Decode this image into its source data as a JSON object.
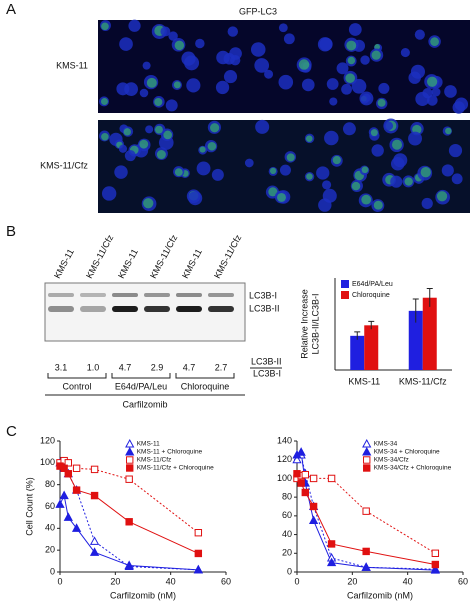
{
  "panel_a": {
    "label": "A",
    "title": "GFP-LC3",
    "rows": [
      "KMS-11",
      "KMS-11/Cfz"
    ]
  },
  "panel_b": {
    "label": "B",
    "lanes": [
      "KMS-11",
      "KMS-11/Cfz",
      "KMS-11",
      "KMS-11/Cfz",
      "KMS-11",
      "KMS-11/Cfz"
    ],
    "bands": [
      "LC3B-I",
      "LC3B-II"
    ],
    "ratios": [
      "3.1",
      "1.0",
      "4.7",
      "2.9",
      "4.7",
      "2.7"
    ],
    "ratio_label": [
      "LC3B-II",
      "LC3B-I"
    ],
    "groups": [
      "Control",
      "E64d/PA/Leu",
      "Chloroquine"
    ],
    "treatment": "Carfilzomib"
  },
  "panel_c": {
    "label": "C"
  },
  "chart_data": [
    {
      "type": "bar",
      "y_label": [
        "Relative Increase",
        "LC3B-II/LC3B-I"
      ],
      "categories": [
        "KMS-11",
        "KMS-11/Cfz"
      ],
      "series": [
        {
          "name": "E64d/PA/Leu",
          "color": "#1f1fe0",
          "values": [
            1.3,
            2.25
          ],
          "errors": [
            0.15,
            0.45
          ]
        },
        {
          "name": "Chloroquine",
          "color": "#e01010",
          "values": [
            1.7,
            2.75
          ],
          "errors": [
            0.15,
            0.35
          ]
        }
      ],
      "ylim": [
        0,
        3.5
      ],
      "legend": "upper left"
    },
    {
      "type": "line",
      "x_label": "Carfilzomib (nM)",
      "y_label": "Cell Count (%)",
      "x": [
        0,
        1.5,
        3,
        6,
        12.5,
        25,
        50
      ],
      "xlim": [
        0,
        60
      ],
      "xticks": [
        0,
        20,
        40,
        60
      ],
      "ylim": [
        0,
        120
      ],
      "yticks": [
        0,
        20,
        40,
        60,
        80,
        100,
        120
      ],
      "legend": "upper right",
      "series": [
        {
          "name": "KMS-11",
          "color": "#1f1fe0",
          "marker": "triangle",
          "filled": false,
          "linestyle": "dotted",
          "values": [
            100,
            95,
            90,
            75,
            28,
            5,
            2
          ]
        },
        {
          "name": "KMS-11 + Chloroquine",
          "color": "#1f1fe0",
          "marker": "triangle",
          "filled": true,
          "linestyle": "solid",
          "values": [
            62,
            70,
            50,
            40,
            18,
            6,
            2
          ]
        },
        {
          "name": "KMS-11/Cfz",
          "color": "#e01010",
          "marker": "square",
          "filled": false,
          "linestyle": "dotted",
          "values": [
            100,
            102,
            100,
            95,
            94,
            85,
            36
          ]
        },
        {
          "name": "KMS-11/Cfz + Chloroquine",
          "color": "#e01010",
          "marker": "square",
          "filled": true,
          "linestyle": "solid",
          "values": [
            97,
            95,
            90,
            75,
            70,
            46,
            17
          ]
        }
      ]
    },
    {
      "type": "line",
      "x_label": "Carfilzomib (nM)",
      "x": [
        0,
        1.5,
        3,
        6,
        12.5,
        25,
        50
      ],
      "xlim": [
        0,
        60
      ],
      "xticks": [
        0,
        20,
        40,
        60
      ],
      "ylim": [
        0,
        140
      ],
      "yticks": [
        0,
        20,
        40,
        60,
        80,
        100,
        120,
        140
      ],
      "legend": "upper right",
      "series": [
        {
          "name": "KMS-34",
          "color": "#1f1fe0",
          "marker": "triangle",
          "filled": false,
          "linestyle": "dotted",
          "values": [
            120,
            125,
            105,
            70,
            15,
            5,
            3
          ]
        },
        {
          "name": "KMS-34 + Chloroquine",
          "color": "#1f1fe0",
          "marker": "triangle",
          "filled": true,
          "linestyle": "solid",
          "values": [
            125,
            128,
            95,
            55,
            10,
            5,
            2
          ]
        },
        {
          "name": "KMS-34/Cfz",
          "color": "#e01010",
          "marker": "square",
          "filled": false,
          "linestyle": "dotted",
          "values": [
            100,
            103,
            104,
            100,
            100,
            65,
            20
          ]
        },
        {
          "name": "KMS-34/Cfz + Chloroquine",
          "color": "#e01010",
          "marker": "square",
          "filled": true,
          "linestyle": "solid",
          "values": [
            105,
            95,
            85,
            70,
            30,
            22,
            8
          ]
        }
      ]
    }
  ]
}
